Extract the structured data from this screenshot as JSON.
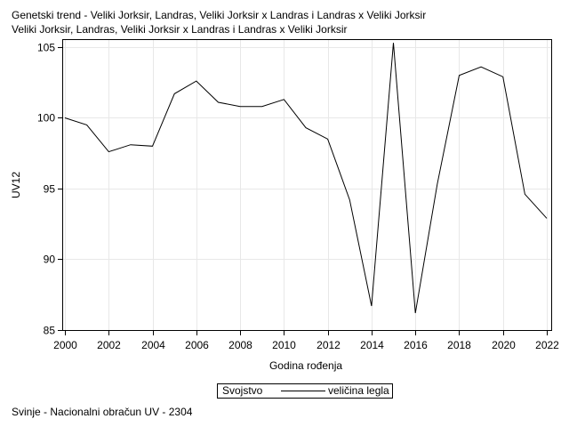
{
  "chart_data": {
    "type": "line",
    "title_lines": [
      "Genetski trend - Veliki Jorksir, Landras, Veliki Jorksir x Landras i Landras x Veliki Jorksir",
      "Veliki Jorksir, Landras, Veliki Jorksir x Landras i Landras x Veliki Jorksir"
    ],
    "xlabel": "Godina rođenja",
    "ylabel": "UV12",
    "xlim": [
      2000,
      2022
    ],
    "ylim": [
      85,
      105.5
    ],
    "xticks": [
      2000,
      2002,
      2004,
      2006,
      2008,
      2010,
      2012,
      2014,
      2016,
      2018,
      2020,
      2022
    ],
    "yticks": [
      85,
      90,
      95,
      100,
      105
    ],
    "grid": true,
    "legend": {
      "title": "Svojstvo",
      "position": "bottom-center"
    },
    "x": [
      2000,
      2001,
      2002,
      2003,
      2004,
      2005,
      2006,
      2007,
      2008,
      2009,
      2010,
      2011,
      2012,
      2013,
      2014,
      2015,
      2016,
      2017,
      2018,
      2019,
      2020,
      2021,
      2022
    ],
    "series": [
      {
        "name": "veličina legla",
        "color": "#000000",
        "values": [
          100.0,
          99.5,
          97.6,
          98.1,
          98.0,
          101.7,
          102.6,
          101.1,
          100.8,
          100.8,
          101.3,
          99.3,
          98.5,
          94.2,
          86.7,
          105.3,
          86.2,
          95.3,
          103.0,
          103.6,
          102.9,
          94.6,
          92.9
        ]
      }
    ]
  },
  "footnote": "Svinje - Nacionalni obračun UV - 2304"
}
